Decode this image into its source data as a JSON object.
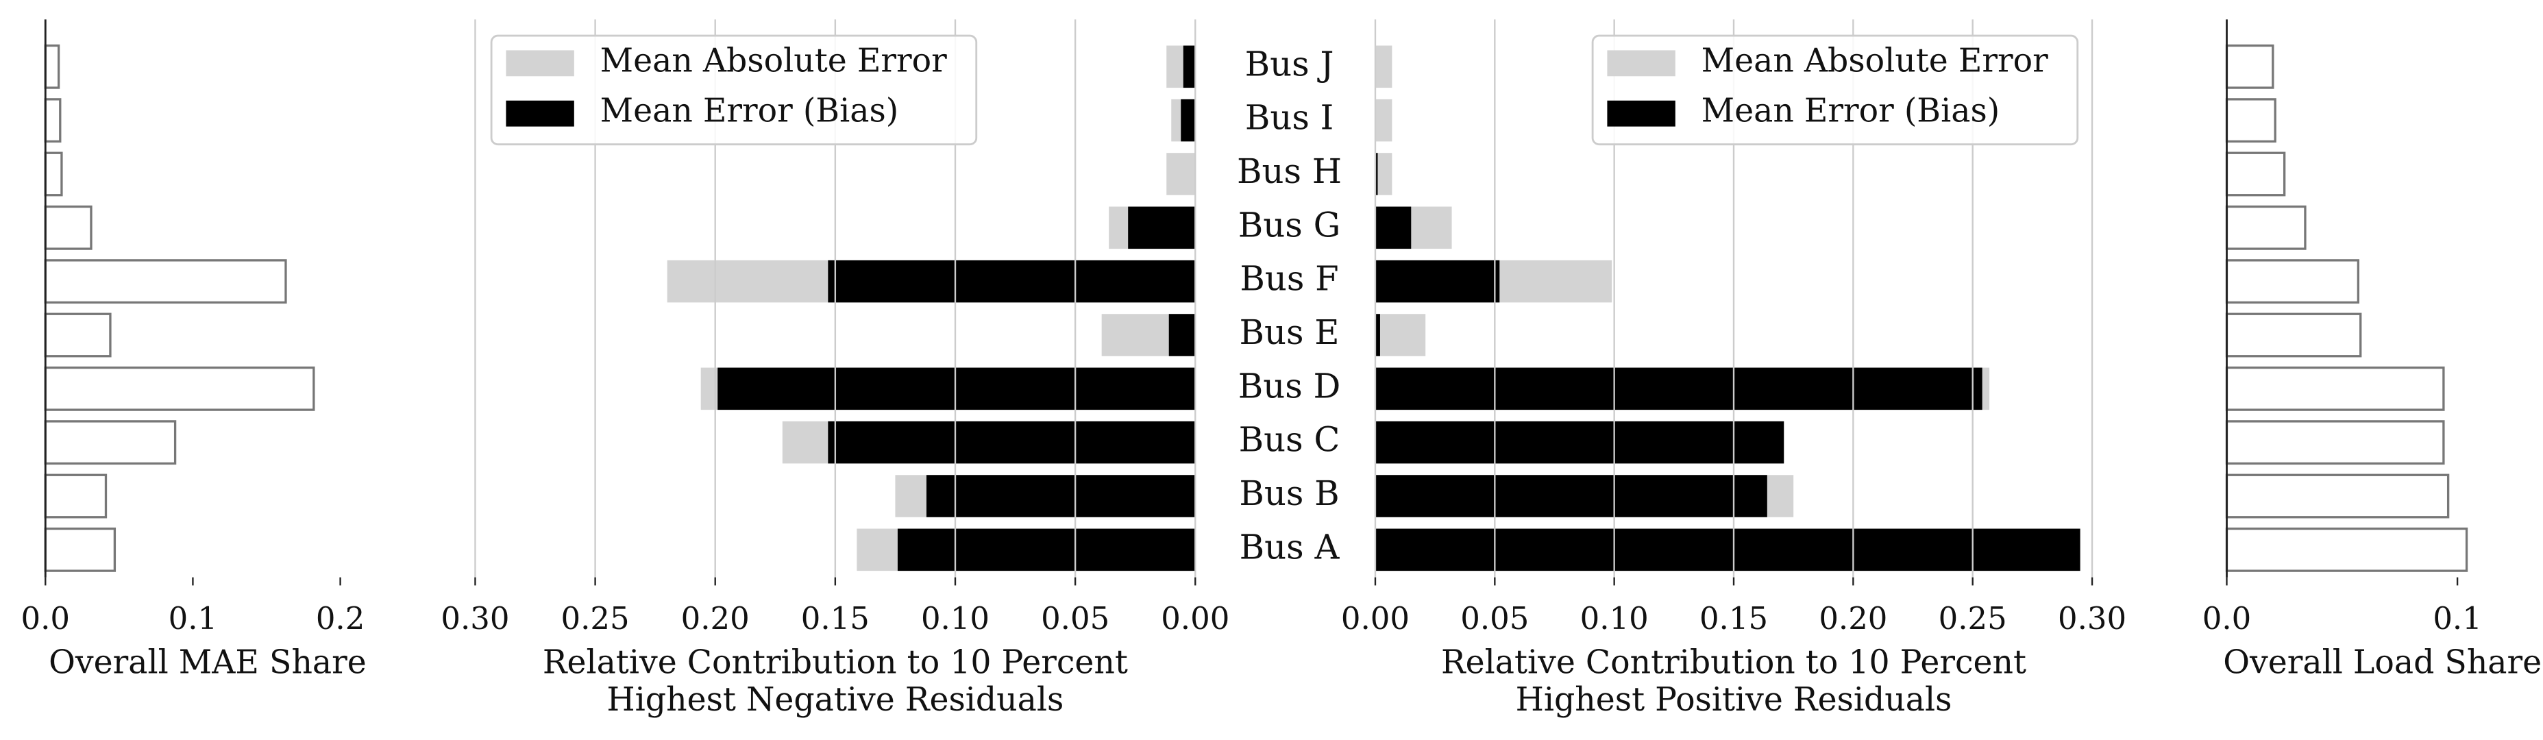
{
  "chart_data": [
    {
      "type": "bar",
      "orientation": "horizontal",
      "xlabel": [
        "Overall MAE Share"
      ],
      "values": [
        0.047,
        0.041,
        0.088,
        0.182,
        0.044,
        0.163,
        0.031,
        0.011,
        0.01,
        0.009
      ],
      "color": "#ffffff",
      "edgecolor": "#777777",
      "xlim": [
        0,
        0.22
      ],
      "xticks": [
        {
          "value": 0,
          "label": "0.0"
        },
        0.1,
        0.2
      ],
      "spines": [
        "left"
      ],
      "grid": false
    },
    {
      "type": "bar",
      "orientation": "horizontal",
      "xaxis_inverted": true,
      "categories": [
        "Bus A",
        "Bus B",
        "Bus C",
        "Bus D",
        "Bus E",
        "Bus F",
        "Bus G",
        "Bus H",
        "Bus I",
        "Bus J"
      ],
      "xlabel": [
        "Relative Contribution to 10 Percent",
        "Highest Negative Residuals"
      ],
      "series": [
        {
          "name": "Mean Absolute Error",
          "color": "#d3d3d3",
          "values": [
            0.141,
            0.125,
            0.172,
            0.206,
            0.039,
            0.22,
            0.036,
            0.012,
            0.01,
            0.012
          ]
        },
        {
          "name": "Mean Error (Bias)",
          "color": "#000000",
          "values": [
            0.124,
            0.112,
            0.153,
            0.199,
            0.011,
            0.153,
            0.028,
            0.0,
            0.006,
            0.005
          ]
        }
      ],
      "xlim": [
        0,
        0.3
      ],
      "xticks": [
        {
          "value": 0.3,
          "label": "0.30"
        },
        0.25,
        {
          "value": 0.2,
          "label": "0.20"
        },
        0.15,
        {
          "value": 0.1,
          "label": "0.10"
        },
        0.05,
        {
          "value": 0,
          "label": "0.00"
        }
      ],
      "grid": true,
      "legend": "upper left",
      "spines": []
    },
    {
      "type": "bar",
      "orientation": "horizontal",
      "xaxis_inverted": false,
      "xlabel": [
        "Relative Contribution to 10 Percent",
        "Highest Positive Residuals"
      ],
      "series": [
        {
          "name": "Mean Absolute Error",
          "color": "#d3d3d3",
          "values": [
            0.295,
            0.175,
            0.171,
            0.257,
            0.021,
            0.099,
            0.032,
            0.007,
            0.007,
            0.007
          ]
        },
        {
          "name": "Mean Error (Bias)",
          "color": "#000000",
          "values": [
            0.295,
            0.164,
            0.171,
            0.254,
            0.002,
            0.052,
            0.015,
            0.001,
            0.0,
            0.0
          ]
        }
      ],
      "xlim": [
        0,
        0.3
      ],
      "xticks": [
        {
          "value": 0,
          "label": "0.00"
        },
        0.05,
        {
          "value": 0.1,
          "label": "0.10"
        },
        0.15,
        {
          "value": 0.2,
          "label": "0.20"
        },
        0.25,
        {
          "value": 0.3,
          "label": "0.30"
        }
      ],
      "grid": true,
      "legend": "upper right",
      "spines": []
    },
    {
      "type": "bar",
      "orientation": "horizontal",
      "xlabel": [
        "Overall Load Share"
      ],
      "values": [
        0.104,
        0.096,
        0.094,
        0.094,
        0.058,
        0.057,
        0.034,
        0.025,
        0.021,
        0.02
      ],
      "color": "#ffffff",
      "edgecolor": "#777777",
      "xlim": [
        0,
        0.135
      ],
      "xticks": [
        {
          "value": 0,
          "label": "0.0"
        },
        0.1
      ],
      "spines": [
        "left"
      ],
      "grid": false
    }
  ]
}
